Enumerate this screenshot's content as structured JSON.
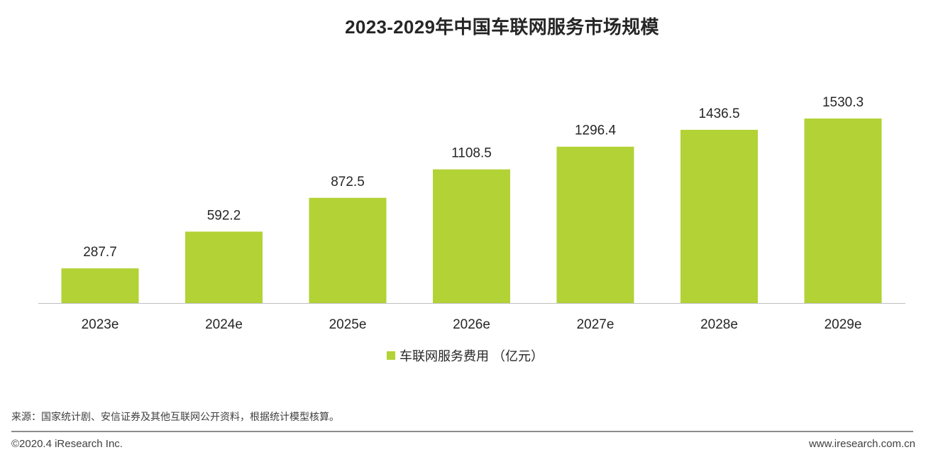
{
  "chart_data": {
    "type": "bar",
    "title": "2023-2029年中国车联网服务市场规模",
    "categories": [
      "2023e",
      "2024e",
      "2025e",
      "2026e",
      "2027e",
      "2028e",
      "2029e"
    ],
    "series": [
      {
        "name": "车联网服务费用 （亿元）",
        "values": [
          287.7,
          592.2,
          872.5,
          1108.5,
          1296.4,
          1436.5,
          1530.3
        ],
        "labels": [
          "287.7",
          "592.2",
          "872.5",
          "1108.5",
          "1296.4",
          "1436.5",
          "1530.3"
        ],
        "color": "#b2d235"
      }
    ],
    "ylim": [
      0,
      1700
    ],
    "grid": false,
    "legend_position": "bottom-center"
  },
  "footer": {
    "source": "来源：国家统计剧、安信证券及其他互联网公开资料，根据统计模型核算。",
    "copyright": "©2020.4 iResearch Inc.",
    "website": "www.iresearch.com.cn"
  },
  "colors": {
    "axis": "#bfbfbf",
    "divider": "#8c8c8c"
  }
}
